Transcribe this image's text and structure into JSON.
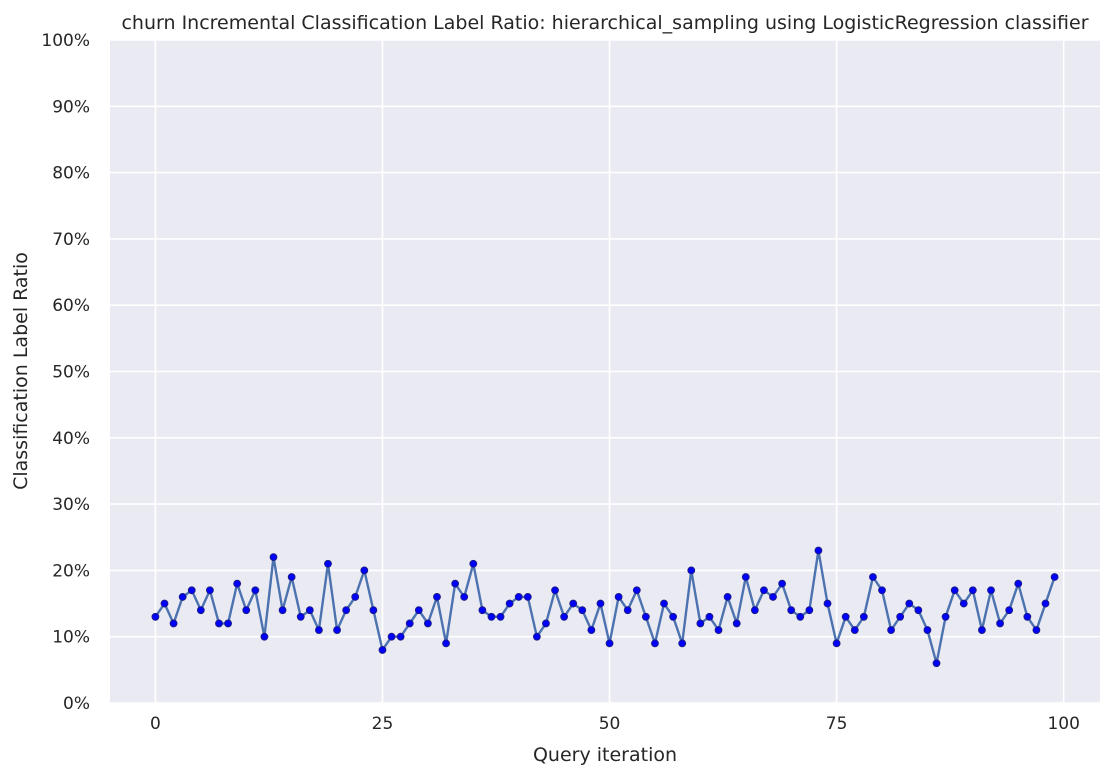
{
  "chart_data": {
    "type": "line",
    "title": "churn Incremental Classification Label Ratio: hierarchical_sampling using LogisticRegression classifier",
    "xlabel": "Query iteration",
    "ylabel": "Classification Label Ratio",
    "xlim": [
      -5,
      104
    ],
    "ylim": [
      0,
      1
    ],
    "xticks": [
      0,
      25,
      50,
      75,
      100
    ],
    "xtick_labels": [
      "0",
      "25",
      "50",
      "75",
      "100"
    ],
    "yticks": [
      0,
      0.1,
      0.2,
      0.3,
      0.4,
      0.5,
      0.6,
      0.7,
      0.8,
      0.9,
      1.0
    ],
    "ytick_labels": [
      "0%",
      "10%",
      "20%",
      "30%",
      "40%",
      "50%",
      "60%",
      "70%",
      "80%",
      "90%",
      "100%"
    ],
    "grid": true,
    "colors": {
      "background": "#eaeaf2",
      "line": "#4c72b0",
      "marker": "#0000ff"
    },
    "x": [
      0,
      1,
      2,
      3,
      4,
      5,
      6,
      7,
      8,
      9,
      10,
      11,
      12,
      13,
      14,
      15,
      16,
      17,
      18,
      19,
      20,
      21,
      22,
      23,
      24,
      25,
      26,
      27,
      28,
      29,
      30,
      31,
      32,
      33,
      34,
      35,
      36,
      37,
      38,
      39,
      40,
      41,
      42,
      43,
      44,
      45,
      46,
      47,
      48,
      49,
      50,
      51,
      52,
      53,
      54,
      55,
      56,
      57,
      58,
      59,
      60,
      61,
      62,
      63,
      64,
      65,
      66,
      67,
      68,
      69,
      70,
      71,
      72,
      73,
      74,
      75,
      76,
      77,
      78,
      79,
      80,
      81,
      82,
      83,
      84,
      85,
      86,
      87,
      88,
      89,
      90,
      91,
      92,
      93,
      94,
      95,
      96,
      97,
      98,
      99
    ],
    "values": [
      0.13,
      0.15,
      0.12,
      0.16,
      0.17,
      0.14,
      0.17,
      0.12,
      0.12,
      0.18,
      0.14,
      0.17,
      0.1,
      0.22,
      0.14,
      0.19,
      0.13,
      0.14,
      0.11,
      0.21,
      0.11,
      0.14,
      0.16,
      0.2,
      0.14,
      0.08,
      0.1,
      0.1,
      0.12,
      0.14,
      0.12,
      0.16,
      0.09,
      0.18,
      0.16,
      0.21,
      0.14,
      0.13,
      0.13,
      0.15,
      0.16,
      0.16,
      0.1,
      0.12,
      0.17,
      0.13,
      0.15,
      0.14,
      0.11,
      0.15,
      0.09,
      0.16,
      0.14,
      0.17,
      0.13,
      0.09,
      0.15,
      0.13,
      0.09,
      0.2,
      0.12,
      0.13,
      0.11,
      0.16,
      0.12,
      0.19,
      0.14,
      0.17,
      0.16,
      0.18,
      0.14,
      0.13,
      0.14,
      0.23,
      0.15,
      0.09,
      0.13,
      0.11,
      0.13,
      0.19,
      0.17,
      0.11,
      0.13,
      0.15,
      0.14,
      0.11,
      0.06,
      0.13,
      0.17,
      0.15,
      0.17,
      0.11,
      0.17,
      0.12,
      0.14,
      0.18,
      0.13,
      0.11,
      0.15,
      0.19
    ]
  }
}
